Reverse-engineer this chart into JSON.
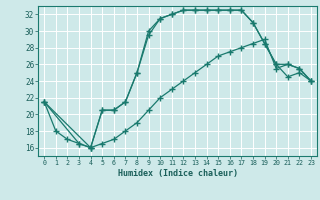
{
  "title": "",
  "xlabel": "Humidex (Indice chaleur)",
  "background_color": "#cee9e9",
  "grid_color": "#ffffff",
  "line_color": "#1a7a6e",
  "xlim": [
    -0.5,
    23.5
  ],
  "ylim": [
    15.0,
    33.0
  ],
  "yticks": [
    16,
    18,
    20,
    22,
    24,
    26,
    28,
    30,
    32
  ],
  "xticks": [
    0,
    1,
    2,
    3,
    4,
    5,
    6,
    7,
    8,
    9,
    10,
    11,
    12,
    13,
    14,
    15,
    16,
    17,
    18,
    19,
    20,
    21,
    22,
    23
  ],
  "line1_x": [
    0,
    1,
    2,
    3,
    4,
    5,
    6,
    7,
    8,
    9,
    10,
    11,
    12,
    13,
    14,
    15,
    16,
    17,
    18,
    19,
    20,
    21,
    22,
    23
  ],
  "line1_y": [
    21.5,
    18.0,
    17.0,
    16.5,
    16.0,
    20.5,
    20.5,
    21.5,
    25.0,
    30.0,
    31.5,
    32.0,
    32.5,
    32.5,
    32.5,
    32.5,
    32.5,
    32.5,
    31.0,
    28.5,
    26.0,
    24.5,
    25.0,
    24.0
  ],
  "line2_x": [
    0,
    4,
    5,
    6,
    7,
    8,
    9,
    10,
    11,
    12,
    13,
    14,
    15,
    16,
    17,
    18,
    19,
    20,
    21,
    22,
    23
  ],
  "line2_y": [
    21.5,
    16.0,
    16.5,
    17.0,
    18.0,
    19.0,
    20.5,
    22.0,
    23.0,
    24.0,
    25.0,
    26.0,
    27.0,
    27.5,
    28.0,
    28.5,
    29.0,
    25.5,
    26.0,
    25.5,
    24.0
  ],
  "line3_x": [
    0,
    3,
    4,
    5,
    6,
    7,
    8,
    9,
    10,
    11,
    12,
    13,
    14,
    15,
    16,
    17,
    18,
    19,
    20,
    21,
    22,
    23
  ],
  "line3_y": [
    21.5,
    16.5,
    16.0,
    20.5,
    20.5,
    21.5,
    25.0,
    29.5,
    31.5,
    32.0,
    32.5,
    32.5,
    32.5,
    32.5,
    32.5,
    32.5,
    31.0,
    28.5,
    26.0,
    26.0,
    25.5,
    24.0
  ]
}
